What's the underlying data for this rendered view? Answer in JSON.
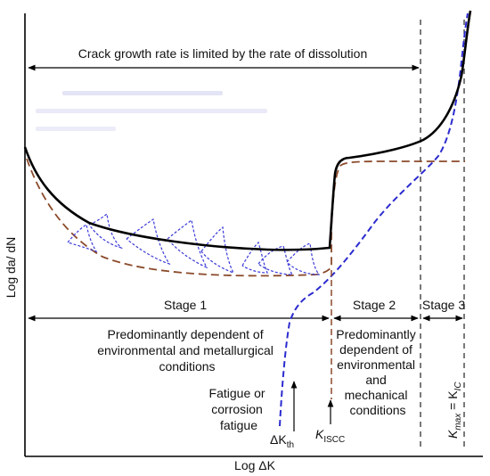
{
  "axes": {
    "x_label": "Log ΔK",
    "y_label": "Log da/ dN"
  },
  "top_annotation": "Crack growth rate is limited by the rate of dissolution",
  "stages": {
    "stage1": {
      "label": "Stage 1",
      "description": [
        "Predominantly dependent of",
        "environmental and metallurgical",
        "conditions"
      ]
    },
    "stage2": {
      "label": "Stage 2",
      "description": [
        "Predominantly",
        "dependent of",
        "environmental",
        "and",
        "mechanical",
        "conditions"
      ]
    },
    "stage3": {
      "label": "Stage 3"
    }
  },
  "markers": {
    "fatigue_note": [
      "Fatigue or",
      "corrosion",
      "fatigue"
    ],
    "delta_k_th": {
      "main": "ΔK",
      "sub": "th"
    },
    "k_iscc": {
      "main": "K",
      "sub": "ISCC"
    },
    "k_max_kic": {
      "main": "K",
      "sub1": "max",
      "mid": " = K",
      "sub2": "IC"
    }
  },
  "colors": {
    "combined_curve": "#000000",
    "fatigue_curve": "#2b2bcf",
    "scc_curve": "#8b4a2b",
    "axis": "#000000"
  }
}
